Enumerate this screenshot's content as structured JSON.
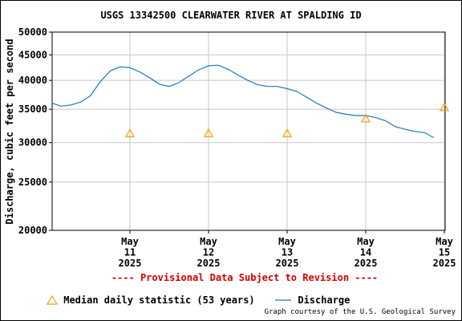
{
  "chart_data": {
    "type": "line",
    "title": "USGS 13342500 CLEARWATER RIVER AT SPALDING ID",
    "ylabel": "Discharge, cubic feet per second",
    "xlabel": "",
    "yscale": "log",
    "ylim": [
      20000,
      50000
    ],
    "yticks": [
      20000,
      25000,
      30000,
      35000,
      40000,
      45000,
      50000
    ],
    "xlim": [
      "2025-05-10 12:15",
      "2025-05-15 12:15"
    ],
    "xticks": [
      {
        "lines": [
          "May",
          "11",
          "2025"
        ],
        "at": "2025-05-11 12:00"
      },
      {
        "lines": [
          "May",
          "12",
          "2025"
        ],
        "at": "2025-05-12 12:00"
      },
      {
        "lines": [
          "May",
          "13",
          "2025"
        ],
        "at": "2025-05-13 12:00"
      },
      {
        "lines": [
          "May",
          "14",
          "2025"
        ],
        "at": "2025-05-14 12:00"
      },
      {
        "lines": [
          "May",
          "15",
          "2025"
        ],
        "at": "2025-05-15 12:00"
      }
    ],
    "grid": true,
    "series": [
      {
        "name": "Discharge",
        "color": "#1f77b4",
        "x": [
          "2025-05-10 12:15",
          "2025-05-10 15:00",
          "2025-05-10 18:00",
          "2025-05-10 21:00",
          "2025-05-11 00:00",
          "2025-05-11 03:00",
          "2025-05-11 06:00",
          "2025-05-11 09:00",
          "2025-05-11 12:00",
          "2025-05-11 15:00",
          "2025-05-11 18:00",
          "2025-05-11 21:00",
          "2025-05-12 00:00",
          "2025-05-12 03:00",
          "2025-05-12 06:00",
          "2025-05-12 09:00",
          "2025-05-12 12:00",
          "2025-05-12 15:00",
          "2025-05-12 18:00",
          "2025-05-12 21:00",
          "2025-05-13 00:00",
          "2025-05-13 03:00",
          "2025-05-13 06:00",
          "2025-05-13 09:00",
          "2025-05-13 12:00",
          "2025-05-13 15:00",
          "2025-05-13 18:00",
          "2025-05-13 21:00",
          "2025-05-14 00:00",
          "2025-05-14 03:00",
          "2025-05-14 06:00",
          "2025-05-14 09:00",
          "2025-05-14 12:00",
          "2025-05-14 15:00",
          "2025-05-14 18:00",
          "2025-05-14 21:00",
          "2025-05-15 00:00",
          "2025-05-15 03:00",
          "2025-05-15 06:00",
          "2025-05-15 08:45"
        ],
        "values": [
          36000,
          35500,
          35700,
          36200,
          37300,
          39800,
          41800,
          42600,
          42400,
          41600,
          40500,
          39300,
          38900,
          39600,
          40800,
          42000,
          42800,
          42900,
          42100,
          41000,
          40000,
          39200,
          38900,
          38900,
          38500,
          38000,
          37000,
          36000,
          35200,
          34500,
          34200,
          34000,
          34000,
          33700,
          33200,
          32300,
          31900,
          31600,
          31400,
          30700
        ]
      },
      {
        "name": "Median daily statistic (53 years)",
        "marker": "triangle",
        "color": "#f0a000",
        "x": [
          "2025-05-11 12:00",
          "2025-05-12 12:00",
          "2025-05-13 12:00",
          "2025-05-14 12:00",
          "2025-05-15 12:00"
        ],
        "values": [
          31300,
          31300,
          31300,
          33500,
          35300
        ]
      }
    ],
    "legend": [
      {
        "label": "Median daily statistic (53 years)"
      },
      {
        "label": "Discharge"
      }
    ],
    "notice": "---- Provisional Data Subject to Revision ----",
    "credit": "Graph courtesy of the U.S. Geological Survey"
  }
}
